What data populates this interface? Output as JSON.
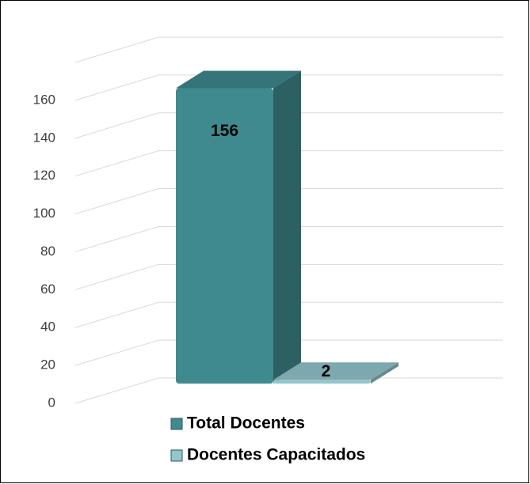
{
  "chart_data": {
    "type": "bar3d",
    "series": [
      {
        "name": "Total Docentes",
        "color": "#3f8a8f",
        "values": [
          156
        ]
      },
      {
        "name": "Docentes Capacitados",
        "color": "#93c6cc",
        "values": [
          2
        ]
      }
    ],
    "ylim": [
      0,
      180
    ],
    "yticks": [
      0,
      20,
      40,
      60,
      80,
      100,
      120,
      140,
      160
    ],
    "grid": true,
    "legend": "bottom"
  }
}
